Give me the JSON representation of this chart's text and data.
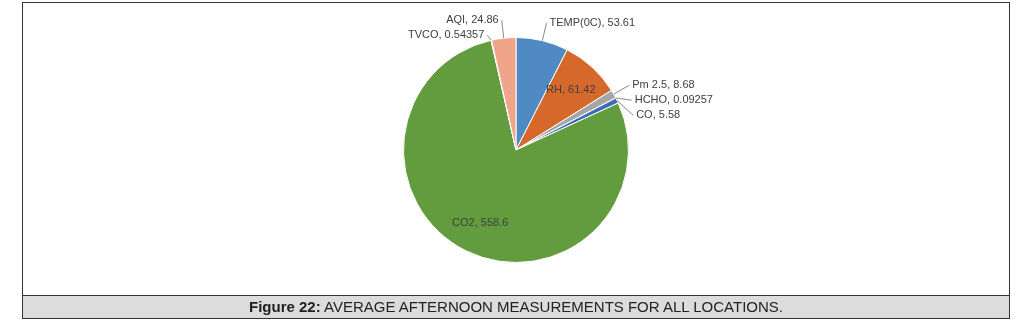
{
  "chart_data": {
    "type": "pie",
    "title": "Figure 22: AVERAGE AFTERNOON MEASUREMENTS FOR ALL LOCATIONS.",
    "categories": [
      "TEMP(0C)",
      "RH",
      "Pm 2.5",
      "HCHO",
      "CO",
      "CO2",
      "TVCO",
      "AQI"
    ],
    "values": [
      53.61,
      61.42,
      8.68,
      0.09257,
      5.58,
      558.6,
      0.54357,
      24.86
    ],
    "colors": [
      "#4f8ac3",
      "#d7682c",
      "#a5a5a5",
      "#f3b600",
      "#3e6bb8",
      "#629c3e",
      "#2a5a8c",
      "#f0a48a"
    ],
    "value_labels": [
      ", 53.61",
      ", 61.42",
      ", 8.68",
      ", 0.09257",
      ", 5.58",
      ", 558.6",
      ", 0.54357",
      ", 24.86"
    ],
    "legend": false
  }
}
